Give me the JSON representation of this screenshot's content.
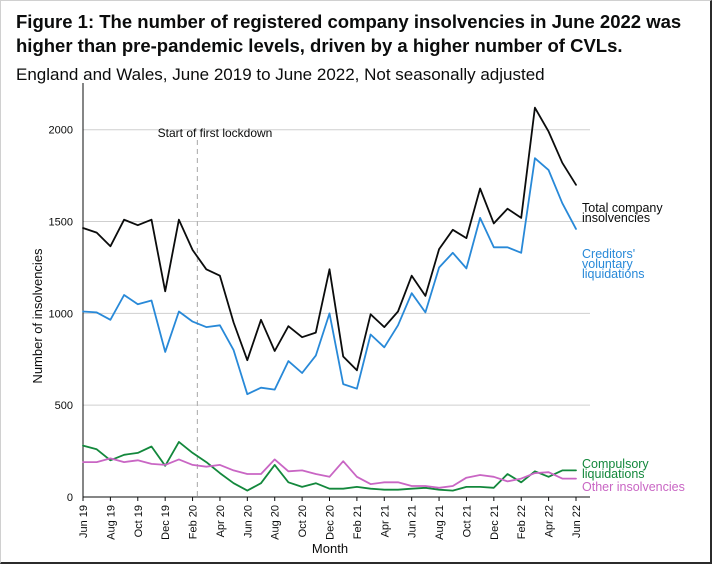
{
  "header": {
    "title": "Figure 1: The number of registered company insolvencies in June 2022 was higher than pre-pandemic levels, driven by a higher number of CVLs.",
    "subtitle": "England and Wales, June 2019 to June 2022, Not seasonally adjusted"
  },
  "chart_data": {
    "type": "line",
    "xlabel": "Month",
    "ylabel": "Number of insolvencies",
    "ylim": [
      0,
      2200
    ],
    "yticks": [
      0,
      500,
      1000,
      1500,
      2000
    ],
    "grid": true,
    "x": [
      "Jun 19",
      "Jul 19",
      "Aug 19",
      "Sep 19",
      "Oct 19",
      "Nov 19",
      "Dec 19",
      "Jan 20",
      "Feb 20",
      "Mar 20",
      "Apr 20",
      "May 20",
      "Jun 20",
      "Jul 20",
      "Aug 20",
      "Sep 20",
      "Oct 20",
      "Nov 20",
      "Dec 20",
      "Jan 21",
      "Feb 21",
      "Mar 21",
      "Apr 21",
      "May 21",
      "Jun 21",
      "Jul 21",
      "Aug 21",
      "Sep 21",
      "Oct 21",
      "Nov 21",
      "Dec 21",
      "Jan 22",
      "Feb 22",
      "Mar 22",
      "Apr 22",
      "May 22",
      "Jun 22"
    ],
    "xtick_labels": [
      "Jun 19",
      "Aug 19",
      "Oct 19",
      "Dec 19",
      "Feb 20",
      "Apr 20",
      "Jun 20",
      "Aug 20",
      "Oct 20",
      "Dec 20",
      "Feb 21",
      "Apr 21",
      "Jun 21",
      "Aug 21",
      "Oct 21",
      "Dec 21",
      "Feb 22",
      "Apr 22",
      "Jun 22"
    ],
    "annotation": {
      "text": "Start of first lockdown",
      "x": "Mar 20"
    },
    "series": [
      {
        "name": "Total company insolvencies",
        "label_lines": [
          "Total company",
          "insolvencies"
        ],
        "color": "#0b0c0c",
        "values": [
          1465,
          1440,
          1365,
          1510,
          1480,
          1510,
          1120,
          1510,
          1345,
          1240,
          1205,
          950,
          745,
          965,
          795,
          930,
          870,
          895,
          1240,
          765,
          690,
          995,
          925,
          1010,
          1205,
          1095,
          1350,
          1455,
          1410,
          1680,
          1490,
          1570,
          1520,
          2120,
          1990,
          1820,
          1700
        ]
      },
      {
        "name": "Creditors' voluntary liquidations",
        "label_lines": [
          "Creditors'",
          "voluntary",
          "liquidations"
        ],
        "color": "#2889d8",
        "values": [
          1010,
          1005,
          965,
          1100,
          1050,
          1070,
          790,
          1010,
          955,
          925,
          935,
          800,
          560,
          595,
          585,
          740,
          675,
          770,
          1000,
          615,
          590,
          885,
          815,
          935,
          1110,
          1005,
          1250,
          1330,
          1245,
          1520,
          1360,
          1360,
          1330,
          1845,
          1780,
          1600,
          1460
        ]
      },
      {
        "name": "Compulsory liquidations",
        "label_lines": [
          "Compulsory",
          "liquidations"
        ],
        "color": "#13883c",
        "values": [
          280,
          260,
          200,
          230,
          240,
          275,
          170,
          300,
          240,
          190,
          130,
          75,
          35,
          75,
          175,
          80,
          55,
          75,
          45,
          45,
          55,
          45,
          40,
          40,
          45,
          50,
          40,
          35,
          55,
          55,
          50,
          125,
          80,
          140,
          110,
          145,
          145
        ]
      },
      {
        "name": "Other insolvencies",
        "label_lines": [
          "Other insolvencies"
        ],
        "color": "#c966c4",
        "values": [
          190,
          190,
          210,
          190,
          200,
          180,
          175,
          205,
          175,
          165,
          175,
          145,
          125,
          125,
          205,
          140,
          145,
          125,
          110,
          195,
          110,
          70,
          80,
          80,
          60,
          60,
          50,
          60,
          105,
          120,
          110,
          85,
          100,
          130,
          135,
          100,
          100
        ]
      }
    ]
  }
}
